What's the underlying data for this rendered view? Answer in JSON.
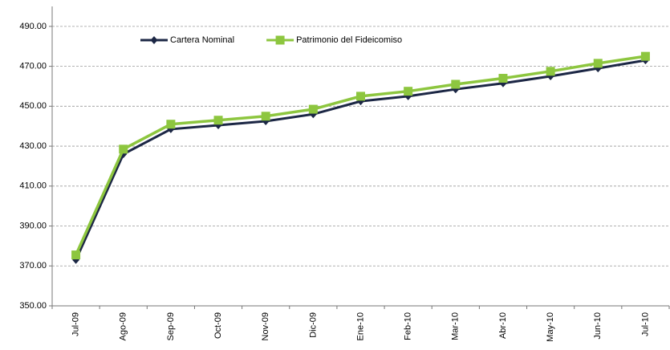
{
  "chart_data": {
    "type": "line",
    "categories": [
      "Jul-09",
      "Ago-09",
      "Sep-09",
      "Oct-09",
      "Nov-09",
      "Dic-09",
      "Ene-10",
      "Feb-10",
      "Mar-10",
      "Abr-10",
      "May-10",
      "Jun-10",
      "Jul-10"
    ],
    "series": [
      {
        "name": "Cartera Nominal",
        "color": "#1c2745",
        "marker": "diamond",
        "values": [
          373,
          426,
          438.5,
          440.5,
          442.5,
          446,
          452.5,
          455,
          458.5,
          461.5,
          465,
          469,
          473
        ]
      },
      {
        "name": "Patrimonio del Fideicomiso",
        "color": "#8dc63f",
        "marker": "square",
        "values": [
          375.5,
          428.5,
          441,
          443,
          445,
          448.5,
          455,
          457.5,
          461,
          464,
          467.5,
          471.5,
          475
        ]
      }
    ],
    "ylim": [
      350,
      500
    ],
    "yticks": [
      {
        "value": 350,
        "label": "350.00"
      },
      {
        "value": 370,
        "label": "370.00"
      },
      {
        "value": 390,
        "label": "390.00"
      },
      {
        "value": 410,
        "label": "410.00"
      },
      {
        "value": 430,
        "label": "430.00"
      },
      {
        "value": 450,
        "label": "450.00"
      },
      {
        "value": 470,
        "label": "470.00"
      },
      {
        "value": 490,
        "label": "490.00"
      }
    ],
    "grid": true,
    "legend": "top"
  }
}
